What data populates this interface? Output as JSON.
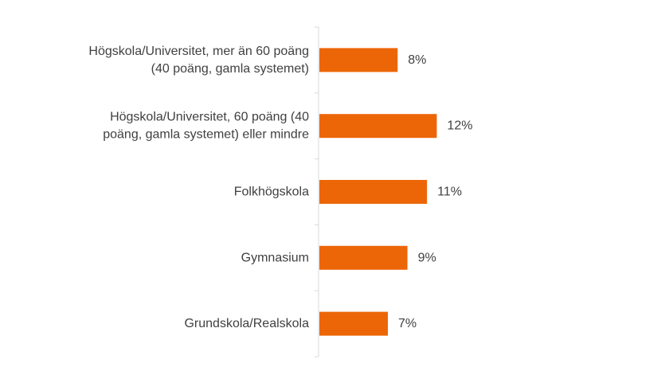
{
  "chart_data": {
    "type": "bar",
    "orientation": "horizontal",
    "categories": [
      "Högskola/Universitet, mer än 60 poäng (40 poäng, gamla systemet)",
      "Högskola/Universitet, 60 poäng (40 poäng, gamla systemet) eller mindre",
      "Folkhögskola",
      "Gymnasium",
      "Grundskola/Realskola"
    ],
    "category_lines": [
      [
        "Högskola/Universitet, mer än 60 poäng",
        "(40 poäng, gamla systemet)"
      ],
      [
        "Högskola/Universitet, 60 poäng (40",
        "poäng, gamla systemet) eller mindre"
      ],
      [
        "Folkhögskola"
      ],
      [
        "Gymnasium"
      ],
      [
        "Grundskola/Realskola"
      ]
    ],
    "values": [
      8,
      12,
      11,
      9,
      7
    ],
    "value_labels": [
      "8%",
      "12%",
      "11%",
      "9%",
      "7%"
    ],
    "unit": "%",
    "title": "",
    "xlabel": "",
    "ylabel": "",
    "xlim": [
      0,
      35
    ],
    "grid": false,
    "legend": "none",
    "bar_color": "#ec6608",
    "axis_color": "#d9d9d9",
    "text_color": "#404040"
  }
}
